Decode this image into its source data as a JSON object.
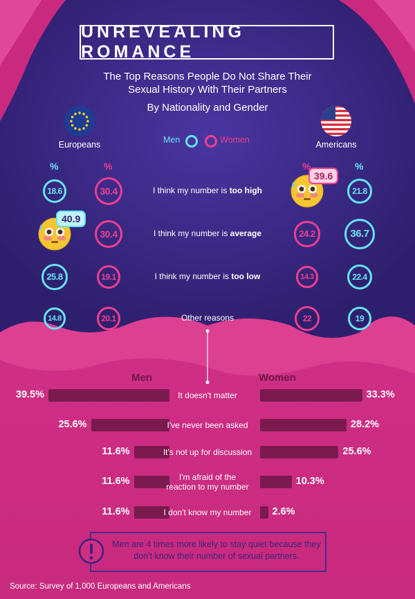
{
  "title": "UNREVEALING ROMANCE",
  "subtitle_line1": "The Top Reasons People Do Not Share Their",
  "subtitle_line2": "Sexual History With Their Partners",
  "byline": "By Nationality and Gender",
  "legend": {
    "men": "Men",
    "women": "Women"
  },
  "europeans_label": "Europeans",
  "americans_label": "Americans",
  "percent_symbol": "%",
  "colors": {
    "men": "#66e3f4",
    "women": "#ee3f8f",
    "top_bg": "#3b2a85",
    "bottom_bg": "#cf2e84",
    "bar": "#7a1a4e"
  },
  "icons": [
    "eu-flag-icon",
    "us-flag-icon",
    "flushed-face-icon"
  ],
  "chart_data": [
    {
      "type": "table",
      "columns": [
        "Europeans Men %",
        "Europeans Women %",
        "Reason",
        "Americans Women %",
        "Americans Men %"
      ],
      "rows": [
        {
          "reason_prefix": "I think my number is ",
          "reason_bold": "too high",
          "eu_men": "18.6",
          "eu_women": "30.4",
          "us_women": "39.6",
          "us_men": "21.8"
        },
        {
          "reason_prefix": "I think my number is ",
          "reason_bold": "average",
          "eu_men": "40.9",
          "eu_women": "30.4",
          "us_women": "24.2",
          "us_men": "36.7"
        },
        {
          "reason_prefix": "I think my number is ",
          "reason_bold": "too low",
          "eu_men": "25.8",
          "eu_women": "19.1",
          "us_women": "14.3",
          "us_men": "22.4"
        },
        {
          "reason_prefix": "Other reasons",
          "reason_bold": "",
          "eu_men": "14.8",
          "eu_women": "20.1",
          "us_women": "22",
          "us_men": "19"
        }
      ]
    },
    {
      "type": "bar",
      "men_header": "Men",
      "women_header": "Women",
      "categories": [
        "It doesn't matter",
        "I've never been asked",
        "It's not up for discussion",
        "I'm afraid of the reaction to my number",
        "I don't know my number"
      ],
      "category_lines": [
        [
          "It doesn't matter"
        ],
        [
          "I've never been asked"
        ],
        [
          "It's not up for discussion"
        ],
        [
          "I'm afraid of the",
          "reaction to my number"
        ],
        [
          "I don't know my number"
        ]
      ],
      "series": [
        {
          "name": "Men",
          "values": [
            39.5,
            25.6,
            11.6,
            11.6,
            11.6
          ],
          "labels": [
            "39.5%",
            "25.6%",
            "11.6%",
            "11.6%",
            "11.6%"
          ]
        },
        {
          "name": "Women",
          "values": [
            33.3,
            28.2,
            25.6,
            10.3,
            2.6
          ],
          "labels": [
            "33.3%",
            "28.2%",
            "25.6%",
            "10.3%",
            "2.6%"
          ]
        }
      ]
    }
  ],
  "note": "Men are 4 times more likely to stay quiet because they don't know their number of sexual partners.",
  "source": "Source: Survey of 1,000 Europeans and Americans"
}
